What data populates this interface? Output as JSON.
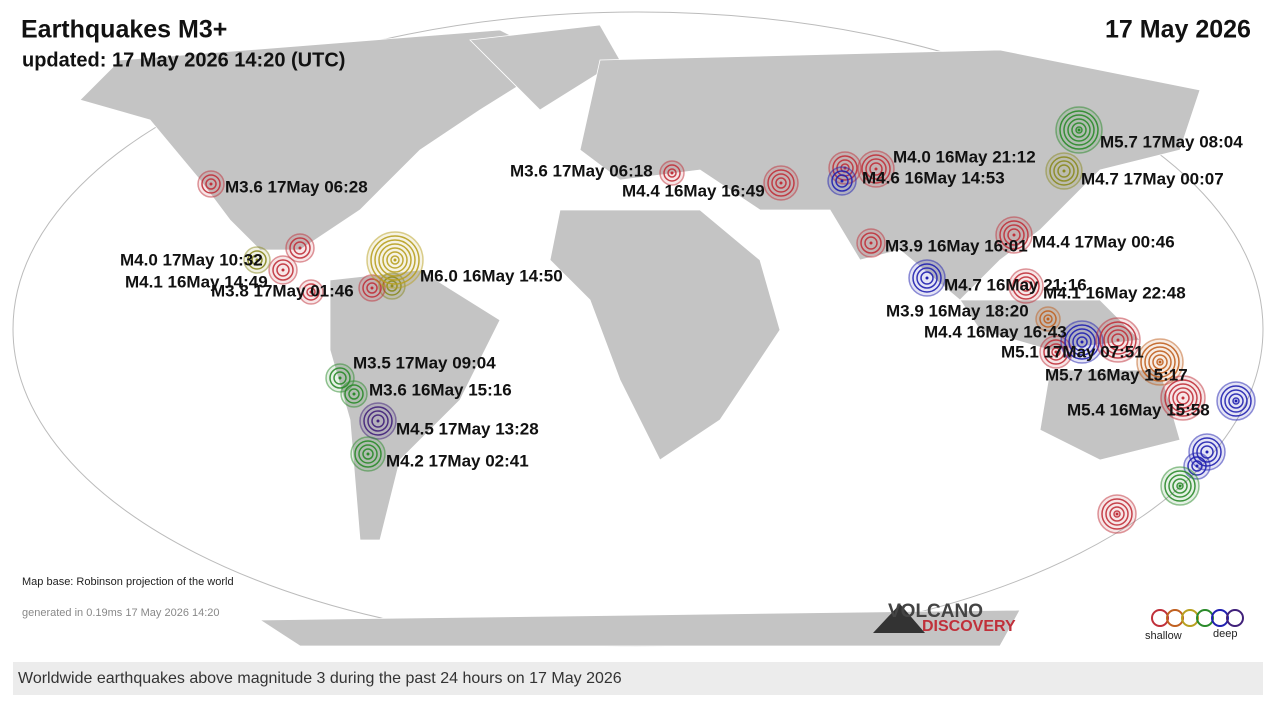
{
  "header": {
    "title": "Earthquakes M3+",
    "updated": "updated: 17 May 2026 14:20 (UTC)",
    "date": "17 May 2026"
  },
  "quakes": [
    {
      "label": "M3.6 17May 06:28",
      "color": "#c0303a"
    },
    {
      "label": "M4.0 17May 10:32",
      "color": "#8a8a20"
    },
    {
      "label": "M4.1 16May 14:49",
      "color": "#c0303a"
    },
    {
      "label": "M3.8 17May 01:46",
      "color": "#c0303a"
    },
    {
      "label": "M6.0 16May 14:50",
      "color": "#b8a020"
    },
    {
      "label": "M3.5 17May 09:04",
      "color": "#2a8a2a"
    },
    {
      "label": "M3.6 16May 15:16",
      "color": "#2a8a2a"
    },
    {
      "label": "M4.5 17May 13:28",
      "color": "#40207a"
    },
    {
      "label": "M4.2 17May 02:41",
      "color": "#2a8a2a"
    },
    {
      "label": "M3.6 17May 06:18",
      "color": "#c0303a"
    },
    {
      "label": "M4.4 16May 16:49",
      "color": "#c0303a"
    },
    {
      "label": "M4.0 16May 21:12",
      "color": "#c0303a"
    },
    {
      "label": "M4.6 16May 14:53",
      "color": "#2020b0"
    },
    {
      "label": "M5.7 17May 08:04",
      "color": "#2a8a2a"
    },
    {
      "label": "M4.7 17May 00:07",
      "color": "#8a8a20"
    },
    {
      "label": "M3.9 16May 16:01",
      "color": "#c0303a"
    },
    {
      "label": "M4.4 17May 00:46",
      "color": "#c0303a"
    },
    {
      "label": "M4.7 16May 21:16",
      "color": "#2020b0"
    },
    {
      "label": "M4.1 16May 22:48",
      "color": "#c0303a"
    },
    {
      "label": "M3.9 16May 18:20",
      "color": "#c06020"
    },
    {
      "label": "M4.4 16May 16:43",
      "color": "#2020b0"
    },
    {
      "label": "M5.1 17May 07:51",
      "color": "#c0303a"
    },
    {
      "label": "M5.7 16May 15:17",
      "color": "#c06020"
    },
    {
      "label": "M5.4 16May 15:58",
      "color": "#c0303a"
    }
  ],
  "markers": [
    {
      "color": "#c0303a"
    },
    {
      "color": "#c0303a"
    },
    {
      "color": "#8a8a20"
    },
    {
      "color": "#c0303a"
    },
    {
      "color": "#2020b0"
    },
    {
      "color": "#2020b0"
    },
    {
      "color": "#2020b0"
    },
    {
      "color": "#2a8a2a"
    },
    {
      "color": "#c0303a"
    },
    {
      "color": "#c0303a"
    }
  ],
  "footer": {
    "map_base": "Map base: Robinson projection of the world",
    "generated": "generated in 0.19ms 17 May 2026 14:20"
  },
  "logo": {
    "line1": "VOLCANO",
    "line2": "DISCOVERY"
  },
  "legend": {
    "shallow": "shallow",
    "deep": "deep"
  },
  "caption": "Worldwide earthquakes above magnitude 3 during the past 24 hours on 17 May 2026"
}
